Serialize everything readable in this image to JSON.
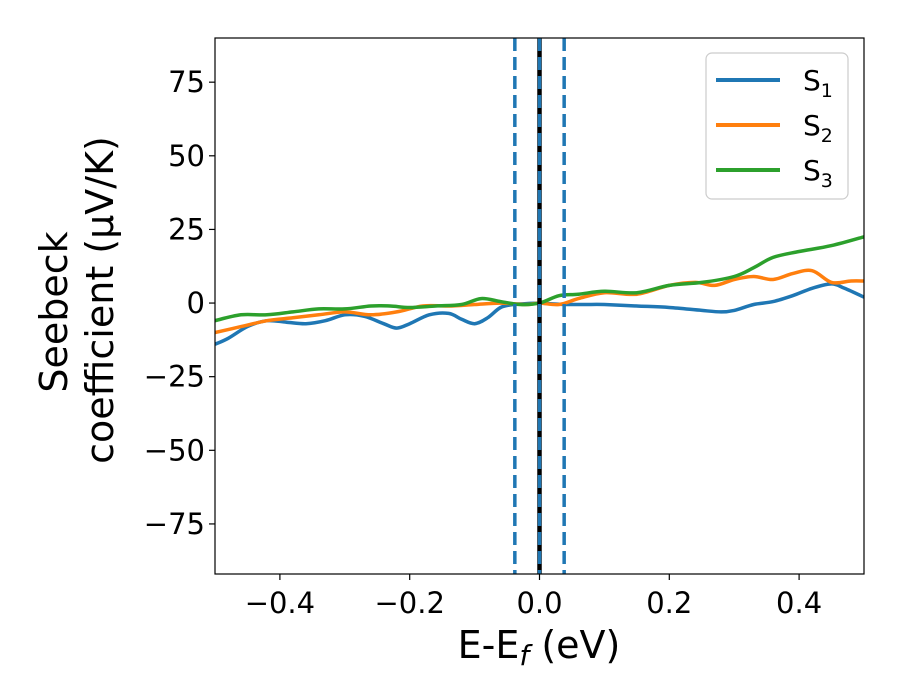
{
  "chart_data": {
    "type": "line",
    "xlabel": {
      "base": "E-E",
      "sub": "f",
      "rest": " (eV)"
    },
    "ylabel": {
      "line1": "Seebeck",
      "line2": "coefficient  (μV/K)"
    },
    "xlim": [
      -0.5,
      0.5
    ],
    "ylim": [
      -92,
      90
    ],
    "xticks": [
      -0.4,
      -0.2,
      0.0,
      0.2,
      0.4
    ],
    "xtick_labels": [
      "−0.4",
      "−0.2",
      "0.0",
      "0.2",
      "0.4"
    ],
    "yticks": [
      75,
      50,
      25,
      0,
      -25,
      -50,
      -75
    ],
    "ytick_labels": [
      "75",
      "50",
      "25",
      "0",
      "−25",
      "−50",
      "−75"
    ],
    "grid": false,
    "legend_position": "top-right",
    "series": [
      {
        "name": "S",
        "sub": "1",
        "color": "#1f77b4",
        "x": [
          -0.5,
          -0.48,
          -0.45,
          -0.42,
          -0.39,
          -0.36,
          -0.33,
          -0.3,
          -0.27,
          -0.24,
          -0.22,
          -0.2,
          -0.17,
          -0.14,
          -0.12,
          -0.1,
          -0.08,
          -0.06,
          -0.04,
          -0.02,
          0.0,
          0.02,
          0.04,
          0.07,
          0.1,
          0.15,
          0.2,
          0.25,
          0.28,
          0.3,
          0.33,
          0.36,
          0.39,
          0.42,
          0.45,
          0.47,
          0.5
        ],
        "y": [
          -14,
          -12,
          -8,
          -6,
          -6.5,
          -7,
          -6,
          -4,
          -4.5,
          -7,
          -8.5,
          -7,
          -4,
          -3.5,
          -5.5,
          -7,
          -5,
          -1.5,
          -0.5,
          -0.2,
          0,
          -0.3,
          -0.5,
          -0.5,
          -0.5,
          -1,
          -1.5,
          -2.5,
          -3,
          -2.5,
          -0.5,
          0.5,
          2.5,
          5,
          6.5,
          5,
          2
        ]
      },
      {
        "name": "S",
        "sub": "2",
        "color": "#ff7f0e",
        "x": [
          -0.5,
          -0.46,
          -0.42,
          -0.38,
          -0.34,
          -0.3,
          -0.26,
          -0.22,
          -0.18,
          -0.14,
          -0.1,
          -0.06,
          -0.02,
          0.0,
          0.03,
          0.06,
          0.1,
          0.15,
          0.2,
          0.24,
          0.27,
          0.3,
          0.33,
          0.36,
          0.39,
          0.42,
          0.45,
          0.48,
          0.5
        ],
        "y": [
          -10,
          -8,
          -6,
          -5,
          -4,
          -3,
          -4,
          -3,
          -1,
          -1,
          -0.5,
          0,
          -0.5,
          0,
          -0.5,
          1.5,
          3.5,
          3,
          6,
          7,
          6,
          8,
          9,
          8,
          10,
          11,
          7,
          7.5,
          7.5
        ]
      },
      {
        "name": "S",
        "sub": "3",
        "color": "#2ca02c",
        "x": [
          -0.5,
          -0.46,
          -0.42,
          -0.38,
          -0.34,
          -0.3,
          -0.26,
          -0.23,
          -0.2,
          -0.16,
          -0.12,
          -0.09,
          -0.06,
          -0.03,
          0.0,
          0.03,
          0.06,
          0.1,
          0.15,
          0.2,
          0.25,
          0.3,
          0.33,
          0.36,
          0.4,
          0.45,
          0.5
        ],
        "y": [
          -6,
          -4,
          -4,
          -3,
          -2,
          -2,
          -1,
          -1,
          -1.5,
          -1,
          -0.5,
          1.5,
          0.5,
          -0.5,
          0,
          2.5,
          3,
          4,
          3.5,
          6,
          7,
          9,
          12,
          15.5,
          17.5,
          19.5,
          22.5
        ]
      }
    ],
    "vlines": [
      {
        "x": -0.038,
        "style": "dashed",
        "color": "#1f77b4"
      },
      {
        "x": 0.0,
        "style": "solid",
        "color": "#000000"
      },
      {
        "x": 0.0,
        "style": "dashed",
        "color": "#1f77b4"
      },
      {
        "x": 0.038,
        "style": "dashed",
        "color": "#1f77b4"
      }
    ]
  }
}
